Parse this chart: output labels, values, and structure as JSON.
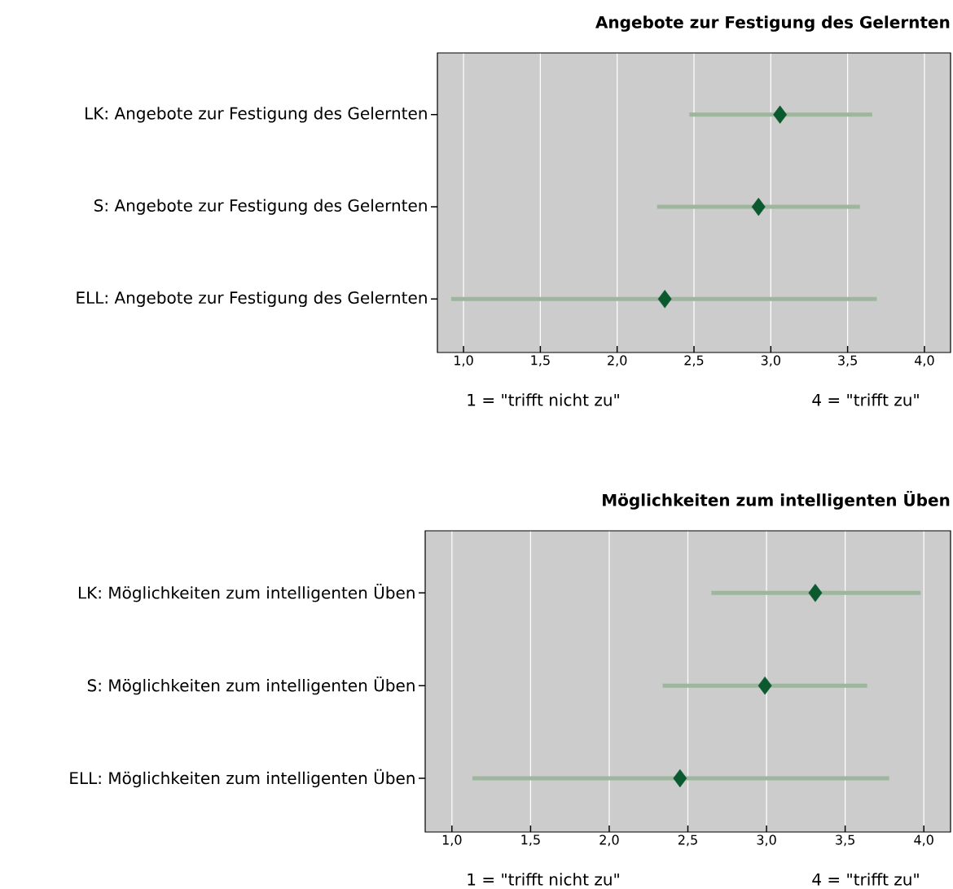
{
  "chart_data": [
    {
      "type": "scatter",
      "title": "Angebote zur Festigung des Gelernten",
      "categories": [
        "LK: Angebote zur Festigung des Gelernten",
        "S: Angebote zur Festigung des Gelernten",
        "ELL: Angebote zur Festigung des Gelernten"
      ],
      "series": [
        {
          "color": "#0b5a2f",
          "values": [
            3.06,
            2.92,
            2.31
          ],
          "errors": [
            [
              2.47,
              3.66
            ],
            [
              2.26,
              3.58
            ],
            [
              0.92,
              3.69
            ]
          ]
        }
      ],
      "orientation": "horizontal",
      "marker": "diamond",
      "grid": "x",
      "xlim": [
        0.83,
        4.17
      ],
      "xticks": [
        {
          "value": 1,
          "label": "1,0"
        },
        {
          "value": 1.5,
          "label": "1,5"
        },
        {
          "value": 2,
          "label": "2,0"
        },
        {
          "value": 2.5,
          "label": "2,5"
        },
        {
          "value": 3,
          "label": "3,0"
        },
        {
          "value": 3.5,
          "label": "3,5"
        },
        {
          "value": 4,
          "label": "4,0"
        }
      ],
      "annotations": [
        "1 = \"trifft nicht zu\"",
        "4 = \"trifft zu\""
      ]
    },
    {
      "type": "scatter",
      "title": "Möglichkeiten zum intelligenten Üben",
      "categories": [
        "LK: Möglichkeiten zum intelligenten Üben",
        "S: Möglichkeiten zum intelligenten Üben",
        "ELL: Möglichkeiten zum intelligenten Üben"
      ],
      "series": [
        {
          "color": "#0b5a2f",
          "values": [
            3.31,
            2.99,
            2.45
          ],
          "errors": [
            [
              2.65,
              3.98
            ],
            [
              2.34,
              3.64
            ],
            [
              1.13,
              3.78
            ]
          ]
        }
      ],
      "orientation": "horizontal",
      "marker": "diamond",
      "grid": "x",
      "xlim": [
        0.83,
        4.17
      ],
      "xticks": [
        {
          "value": 1,
          "label": "1,0"
        },
        {
          "value": 1.5,
          "label": "1,5"
        },
        {
          "value": 2,
          "label": "2,0"
        },
        {
          "value": 2.5,
          "label": "2,5"
        },
        {
          "value": 3,
          "label": "3,0"
        },
        {
          "value": 3.5,
          "label": "3,5"
        },
        {
          "value": 4,
          "label": "4,0"
        }
      ],
      "annotations": [
        "1 = \"trifft nicht zu\"",
        "4 = \"trifft zu\""
      ]
    }
  ]
}
